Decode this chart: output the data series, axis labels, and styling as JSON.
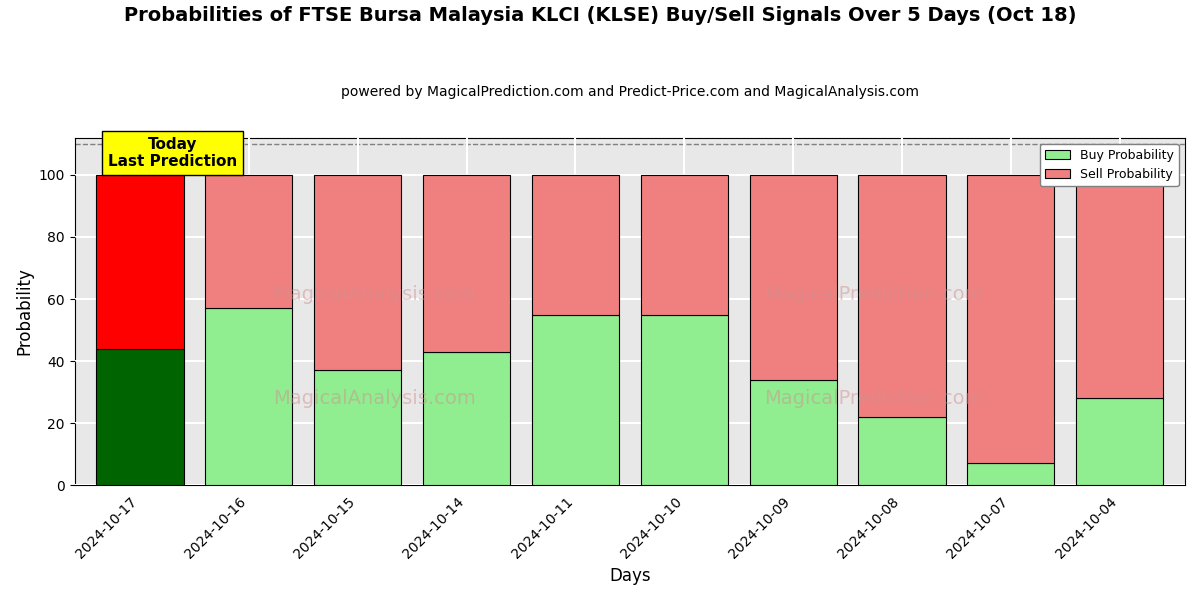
{
  "title": "Probabilities of FTSE Bursa Malaysia KLCI (KLSE) Buy/Sell Signals Over 5 Days (Oct 18)",
  "subtitle": "powered by MagicalPrediction.com and Predict-Price.com and MagicalAnalysis.com",
  "xlabel": "Days",
  "ylabel": "Probability",
  "categories": [
    "2024-10-17",
    "2024-10-16",
    "2024-10-15",
    "2024-10-14",
    "2024-10-11",
    "2024-10-10",
    "2024-10-09",
    "2024-10-08",
    "2024-10-07",
    "2024-10-04"
  ],
  "buy_values": [
    44,
    57,
    37,
    43,
    55,
    55,
    34,
    22,
    7,
    28
  ],
  "sell_values": [
    56,
    43,
    63,
    57,
    45,
    45,
    66,
    78,
    93,
    72
  ],
  "today_buy_color": "#006400",
  "today_sell_color": "#ff0000",
  "buy_color": "#90EE90",
  "sell_color": "#F08080",
  "today_index": 0,
  "ylim": [
    0,
    112
  ],
  "yticks": [
    0,
    20,
    40,
    60,
    80,
    100
  ],
  "dashed_line_y": 110,
  "today_label": "Today\nLast Prediction",
  "today_label_bg": "#ffff00",
  "today_label_fontsize": 11,
  "bar_width": 0.8,
  "watermark1_text": "MagicalAnalysis.com",
  "watermark2_text": "MagicalPrediction.com",
  "watermark_color": "#d09090",
  "watermark_alpha": 0.5,
  "legend_buy_label": "Buy Probability",
  "legend_sell_label": "Sell Probability",
  "title_fontsize": 14,
  "subtitle_fontsize": 10,
  "axis_label_fontsize": 12,
  "tick_fontsize": 10,
  "bg_color": "#ffffff",
  "grid_color": "white",
  "grid_linewidth": 1.5
}
